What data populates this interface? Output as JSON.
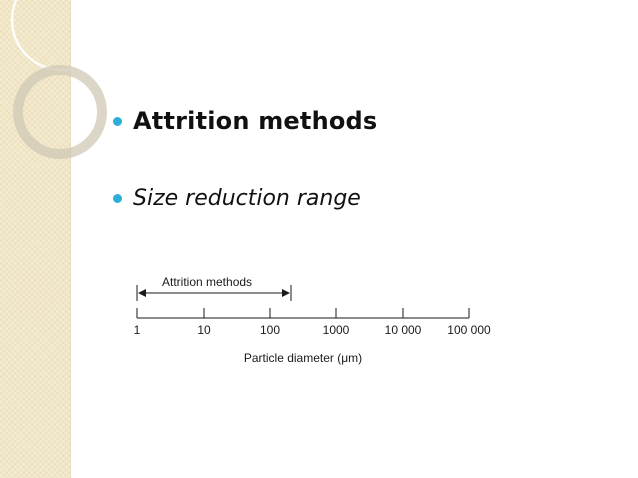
{
  "slide": {
    "bullets": [
      {
        "text": "Attrition methods"
      },
      {
        "text": "Size reduction range"
      }
    ]
  },
  "diagram": {
    "range_label": "Attrition methods",
    "ticks": [
      "1",
      "10",
      "100",
      "1000",
      "10 000",
      "100 000"
    ],
    "axis_label": "Particle diameter (μm)"
  },
  "colors": {
    "bullet": "#2eaed6",
    "side_band": "#f4ebcf",
    "rings": "#cfc8b6"
  }
}
